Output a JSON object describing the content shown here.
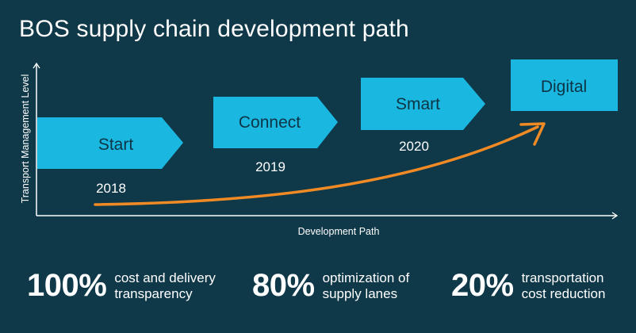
{
  "title": "BOS supply chain development path",
  "axes": {
    "y_label": "Transport Management Level",
    "x_label": "Development Path"
  },
  "stages": [
    {
      "label": "Start",
      "year": "2018"
    },
    {
      "label": "Connect",
      "year": "2019"
    },
    {
      "label": "Smart",
      "year": "2020"
    },
    {
      "label": "Digital",
      "year": ""
    }
  ],
  "stats": [
    {
      "value": "100%",
      "description": "cost and delivery\ntransparency"
    },
    {
      "value": "80%",
      "description": "optimization of\nsupply lanes"
    },
    {
      "value": "20%",
      "description": "transportation\ncost reduction"
    }
  ],
  "colors": {
    "background": "#0f3849",
    "stage_fill": "#1ab8e0",
    "arrow": "#f08a24",
    "text": "#ffffff"
  }
}
